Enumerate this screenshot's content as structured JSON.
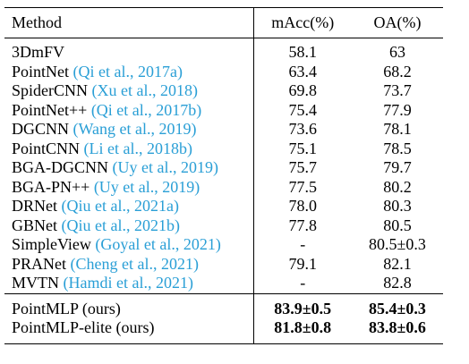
{
  "caption_fragment": "",
  "table": {
    "headers": {
      "method": "Method",
      "macc": "mAcc(%)",
      "oa": "OA(%)"
    },
    "baselines": [
      {
        "name": "3DmFV",
        "citation": "",
        "macc": "58.1",
        "oa": "63"
      },
      {
        "name": "PointNet",
        "citation": "(Qi et al., 2017a)",
        "macc": "63.4",
        "oa": "68.2"
      },
      {
        "name": "SpiderCNN",
        "citation": "(Xu et al., 2018)",
        "macc": "69.8",
        "oa": "73.7"
      },
      {
        "name": "PointNet++",
        "citation": "(Qi et al., 2017b)",
        "macc": "75.4",
        "oa": "77.9"
      },
      {
        "name": "DGCNN",
        "citation": "(Wang et al., 2019)",
        "macc": "73.6",
        "oa": "78.1"
      },
      {
        "name": "PointCNN",
        "citation": "(Li et al., 2018b)",
        "macc": "75.1",
        "oa": "78.5"
      },
      {
        "name": "BGA-DGCNN",
        "citation": "(Uy et al., 2019)",
        "macc": "75.7",
        "oa": "79.7"
      },
      {
        "name": "BGA-PN++",
        "citation": "(Uy et al., 2019)",
        "macc": "77.5",
        "oa": "80.2"
      },
      {
        "name": "DRNet",
        "citation": "(Qiu et al., 2021a)",
        "macc": "78.0",
        "oa": "80.3"
      },
      {
        "name": "GBNet",
        "citation": "(Qiu et al., 2021b)",
        "macc": "77.8",
        "oa": "80.5"
      },
      {
        "name": "SimpleView",
        "citation": "(Goyal et al., 2021)",
        "macc": "-",
        "oa": "80.5±0.3"
      },
      {
        "name": "PRANet",
        "citation": "(Cheng et al., 2021)",
        "macc": "79.1",
        "oa": "82.1"
      },
      {
        "name": "MVTN",
        "citation": "(Hamdi et al., 2021)",
        "macc": "-",
        "oa": "82.8"
      }
    ],
    "ours": [
      {
        "name": "PointMLP (ours)",
        "macc": "83.9±0.5",
        "oa": "85.4±0.3"
      },
      {
        "name": "PointMLP-elite (ours)",
        "macc": "81.8±0.8",
        "oa": "83.8±0.6"
      }
    ]
  },
  "colors": {
    "citation": "#2a9fd6",
    "text": "#000000",
    "background": "#ffffff"
  }
}
